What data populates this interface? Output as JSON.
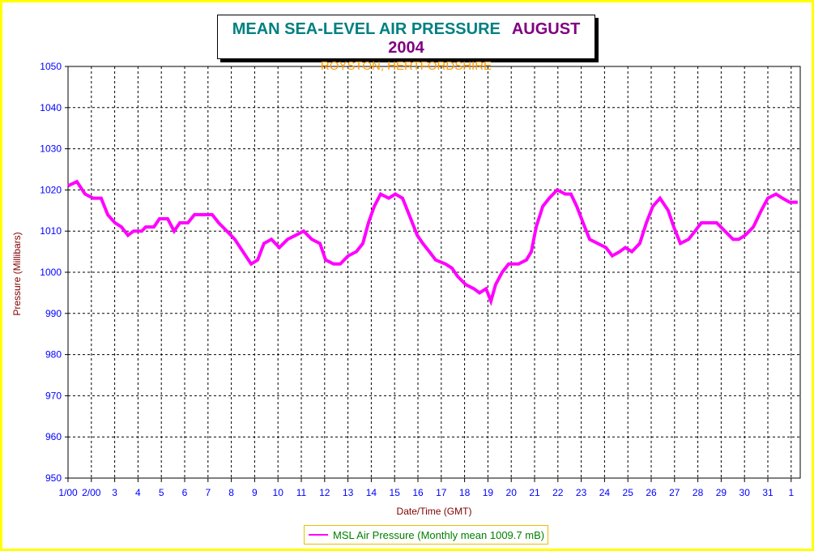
{
  "chart_data": {
    "type": "line",
    "title": "MEAN SEA-LEVEL AIR PRESSURE",
    "title_period": "AUGUST 2004",
    "subtitle": "ROYSTON, HERTFORDSHIRE",
    "xlabel": "Date/Time (GMT)",
    "ylabel": "Pressure (Millibars)",
    "ylim": [
      950,
      1050
    ],
    "yticks": [
      950,
      960,
      970,
      980,
      990,
      1000,
      1010,
      1020,
      1030,
      1040,
      1050
    ],
    "xlim_days": [
      0,
      31.4
    ],
    "xtick_labels": [
      "1/00",
      "2/00",
      "3",
      "4",
      "5",
      "6",
      "7",
      "8",
      "9",
      "10",
      "11",
      "12",
      "13",
      "14",
      "15",
      "16",
      "17",
      "18",
      "19",
      "20",
      "21",
      "22",
      "23",
      "24",
      "25",
      "26",
      "27",
      "28",
      "29",
      "30",
      "31",
      "1"
    ],
    "grid": true,
    "legend_position": "bottom-center",
    "series": [
      {
        "name": "MSL Air Pressure (Monthly mean 1009.7 mB)",
        "color": "#ff00ff",
        "x_days": [
          0,
          0.38,
          0.73,
          1.08,
          1.42,
          1.7,
          2.01,
          2.29,
          2.57,
          2.81,
          3.16,
          3.33,
          3.68,
          3.92,
          4.27,
          4.55,
          4.79,
          5.14,
          5.42,
          5.76,
          6.18,
          6.46,
          6.81,
          7.15,
          7.5,
          7.85,
          8.13,
          8.4,
          8.72,
          9.06,
          9.41,
          9.76,
          10.1,
          10.45,
          10.8,
          11.04,
          11.39,
          11.67,
          12.01,
          12.36,
          12.64,
          12.88,
          13.13,
          13.4,
          13.75,
          14.03,
          14.34,
          14.62,
          14.97,
          15.21,
          15.49,
          15.76,
          16.18,
          16.46,
          16.7,
          17.05,
          17.4,
          17.64,
          17.92,
          18.13,
          18.33,
          18.61,
          18.89,
          19.31,
          19.65,
          19.86,
          20.07,
          20.35,
          20.63,
          20.97,
          21.32,
          21.56,
          21.81,
          22.08,
          22.36,
          22.71,
          23.06,
          23.33,
          23.65,
          23.89,
          24.17,
          24.51,
          24.79,
          25.07,
          25.38,
          25.73,
          25.97,
          26.25,
          26.6,
          26.88,
          27.15,
          27.47,
          27.81,
          28.16,
          28.51,
          28.75,
          29.03,
          29.38,
          29.72,
          30.0,
          30.35,
          30.63,
          30.94,
          31.28
        ],
        "values": [
          1021,
          1022,
          1019,
          1018,
          1018,
          1014,
          1012,
          1011,
          1009,
          1010,
          1010,
          1011,
          1011,
          1013,
          1013,
          1010,
          1012,
          1012,
          1014,
          1014,
          1014,
          1012,
          1010,
          1008,
          1005,
          1002,
          1003,
          1007,
          1008,
          1006,
          1008,
          1009,
          1010,
          1008,
          1007,
          1003,
          1002,
          1002,
          1004,
          1005,
          1007,
          1012,
          1016,
          1019,
          1018,
          1019,
          1018,
          1014,
          1009,
          1007,
          1005,
          1003,
          1002,
          1001,
          999,
          997,
          996,
          995,
          996,
          993,
          997,
          1000,
          1002,
          1002,
          1003,
          1005,
          1011,
          1016,
          1018,
          1020,
          1019,
          1019,
          1016,
          1012,
          1008,
          1007,
          1006,
          1004,
          1005,
          1006,
          1005,
          1007,
          1012,
          1016,
          1018,
          1015,
          1011,
          1007,
          1008,
          1010,
          1012,
          1012,
          1012,
          1010,
          1008,
          1008,
          1009,
          1011,
          1015,
          1018,
          1019,
          1018,
          1017,
          1017
        ]
      }
    ]
  }
}
